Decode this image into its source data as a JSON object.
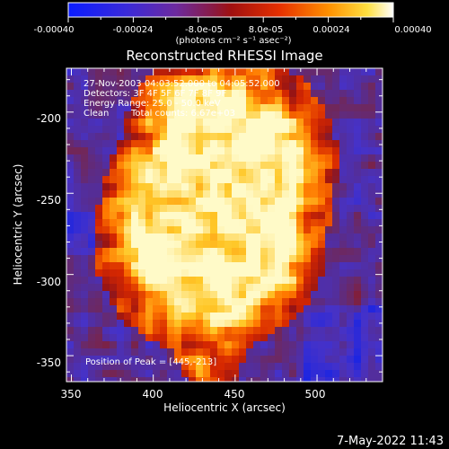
{
  "title": "Reconstructed RHESSI Image",
  "colorbar": {
    "ticks": [
      "-0.00040",
      "-0.00024",
      "-8.0e-05",
      "8.0e-05",
      "0.00024",
      "0.00040"
    ],
    "units_label": "(photons cm⁻² s⁻¹ asec⁻²)",
    "range": [
      -0.0004,
      0.0004
    ]
  },
  "annotations": {
    "time_range": "27-Nov-2003 04:03:52.000 to 04:05:52.000",
    "detectors": "Detectors: 3F 4F 5F 6F 7F 8F 9F",
    "energy": "Energy Range: 25.0 - 50.0 keV",
    "method": "Clean",
    "total_counts": "Total counts: 6.67e+03",
    "peak": "Position of Peak = [445,-213]"
  },
  "axes": {
    "x_label": "Heliocentric X (arcsec)",
    "y_label": "Heliocentric Y (arcsec)",
    "x_ticks": [
      "350",
      "400",
      "450",
      "500"
    ],
    "y_ticks": [
      "-200",
      "-250",
      "-300",
      "-350"
    ],
    "x_range": [
      347,
      540
    ],
    "y_range": [
      -366,
      -173
    ]
  },
  "footer": {
    "timestamp": "7-May-2022 11:43"
  },
  "colors": {
    "colormap": [
      "#0d1ef0",
      "#5a2fd0",
      "#7a3aa0",
      "#b01818",
      "#e03a00",
      "#ff8a00",
      "#ffcc30",
      "#ffffff"
    ],
    "text": "#ffffff",
    "background": "#000000"
  }
}
